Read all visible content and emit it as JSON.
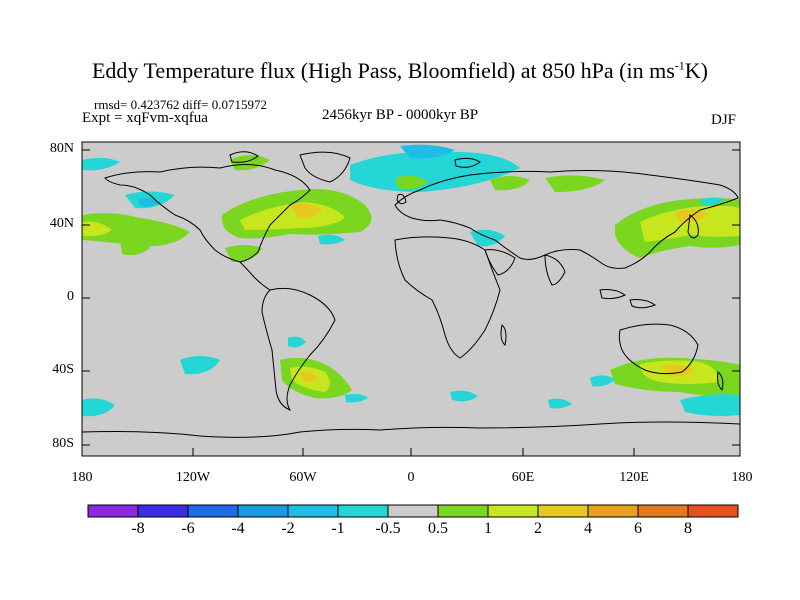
{
  "title": {
    "main": "Eddy Temperature flux (High Pass, Bloomfield) at 850 hPa (in ms",
    "sup": "-1",
    "end": "K)"
  },
  "stats": {
    "rmsd_diff": "rmsd= 0.423762 diff= 0.0715972",
    "expt": "Expt = xqFvm-xqfua",
    "period": "2456kyr BP - 0000kyr BP",
    "season": "DJF"
  },
  "axes": {
    "y_ticks": [
      "80N",
      "40N",
      "0",
      "40S",
      "80S"
    ],
    "x_ticks": [
      "180",
      "120W",
      "60W",
      "0",
      "60E",
      "120E",
      "180"
    ]
  },
  "colorbar": {
    "labels": [
      "-8",
      "-6",
      "-4",
      "-2",
      "-1",
      "-0.5",
      "0.5",
      "1",
      "2",
      "4",
      "6",
      "8"
    ],
    "colors": [
      "#8a2be2",
      "#3b2ce6",
      "#1f6ae6",
      "#189bdf",
      "#1ebde6",
      "#25d6d6",
      "#cccccc",
      "#7ad61e",
      "#c8e61e",
      "#e6c81e",
      "#e6a01e",
      "#e6781e",
      "#e6501e"
    ]
  },
  "colors": {
    "land_bg": "#cccccc",
    "coast": "#000000"
  }
}
